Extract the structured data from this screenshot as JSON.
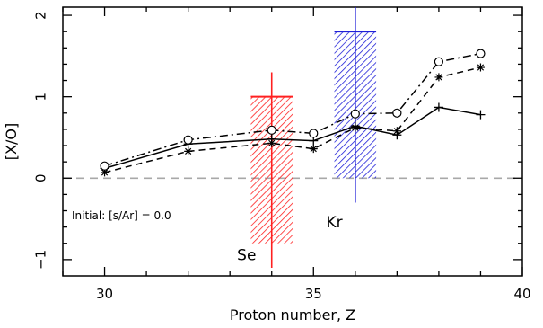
{
  "chart_data": {
    "type": "line",
    "xlabel": "Proton number, Z",
    "ylabel": "[X/O]",
    "xlim": [
      29,
      40
    ],
    "ylim": [
      -1.2,
      2.1
    ],
    "x_ticks": [
      30,
      35,
      40
    ],
    "x_tick_labels": [
      "30",
      "35",
      "40"
    ],
    "y_ticks": [
      -1,
      0,
      1,
      2
    ],
    "y_tick_labels": [
      "−1",
      "0",
      "1",
      "2"
    ],
    "reference_line": {
      "y": 0,
      "color": "#a8a8a8",
      "style": "dashed"
    },
    "annotation": "Initial: [s/Ar] = 0.0",
    "series": [
      {
        "style": "solid",
        "marker": "plus",
        "x": [
          30,
          32,
          34,
          35,
          36,
          37,
          38,
          39
        ],
        "y": [
          0.12,
          0.42,
          0.48,
          0.46,
          0.64,
          0.53,
          0.87,
          0.78
        ]
      },
      {
        "style": "dashed",
        "marker": "asterisk",
        "x": [
          30,
          32,
          34,
          35,
          36,
          37,
          38,
          39
        ],
        "y": [
          0.07,
          0.33,
          0.43,
          0.36,
          0.62,
          0.58,
          1.24,
          1.36
        ]
      },
      {
        "style": "dashdot",
        "marker": "circle",
        "x": [
          30,
          32,
          34,
          35,
          36,
          37,
          38,
          39
        ],
        "y": [
          0.15,
          0.47,
          0.59,
          0.55,
          0.79,
          0.8,
          1.43,
          1.53
        ]
      }
    ],
    "observations": [
      {
        "label": "Se",
        "x": 34,
        "x_err": 0.5,
        "y_low": -0.8,
        "y_high": 1.0,
        "y_min": -1.1,
        "y_max": 1.3,
        "color": "#ff2020",
        "label_x": 33.4,
        "label_y": -0.95
      },
      {
        "label": "Kr",
        "x": 36,
        "x_err": 0.5,
        "y_low": 0.0,
        "y_high": 1.8,
        "y_min": -0.3,
        "y_max": 2.1,
        "color": "#1f1fd8",
        "label_x": 35.5,
        "label_y": -0.55
      }
    ]
  }
}
